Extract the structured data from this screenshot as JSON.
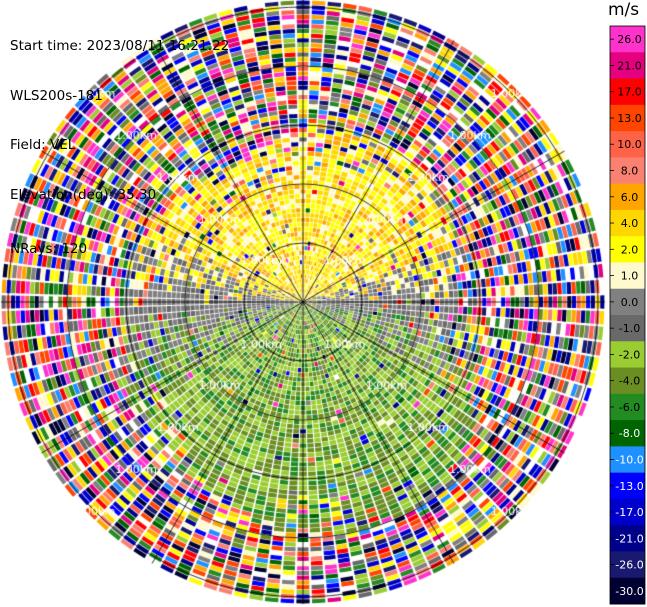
{
  "header": {
    "start_time": "Start time: 2023/08/11 16:21:22",
    "instrument": "WLS200s-181",
    "field": "Field: VEL",
    "elevation": "Elevation(deg): 35.30",
    "nrays": "NRays: 120"
  },
  "colorbar": {
    "unit": "m/s",
    "ticks": [
      "26.0",
      "21.0",
      "17.0",
      "13.0",
      "10.0",
      "8.0",
      "6.0",
      "4.0",
      "2.0",
      "1.0",
      "0.0",
      "-1.0",
      "-2.0",
      "-4.0",
      "-6.0",
      "-8.0",
      "-10.0",
      "-13.0",
      "-17.0",
      "-21.0",
      "-26.0",
      "-30.0"
    ],
    "colors": [
      "#ff33cc",
      "#e4007f",
      "#ff0000",
      "#ff4500",
      "#ff6347",
      "#fa8072",
      "#ffa500",
      "#ffd700",
      "#ffff00",
      "#fffacd",
      "#808080",
      "#696969",
      "#9acd32",
      "#6b8e23",
      "#228b22",
      "#006400",
      "#1e90ff",
      "#0000ff",
      "#0000cd",
      "#00008b",
      "#191970",
      "#000033"
    ]
  },
  "chart_data": {
    "type": "ppi",
    "field": "VEL",
    "nrays": 120,
    "range_rings_km": [
      1,
      2,
      3,
      4,
      5
    ],
    "ring_label": "1.00km",
    "velocity_range": [
      -30,
      26
    ],
    "pattern": {
      "inner_north": "positive 1–6 m/s (yellow/orange)",
      "inner_east_west": "near zero (gray)",
      "inner_south": "negative -2 to -6 m/s (green)",
      "outer": "noise, full color range"
    }
  }
}
